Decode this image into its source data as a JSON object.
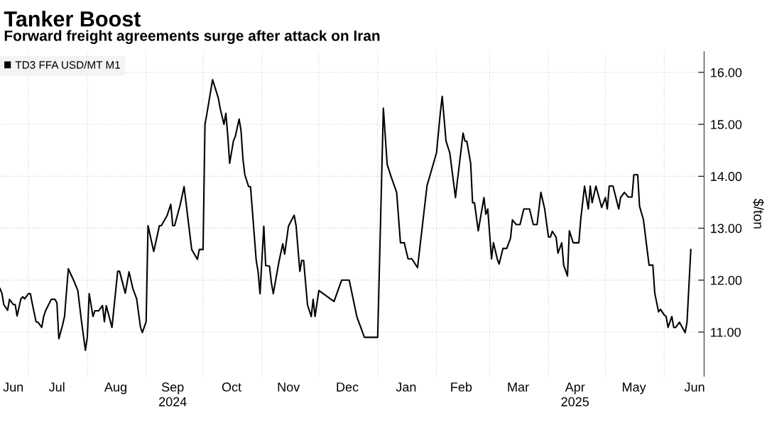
{
  "chart_data": {
    "type": "line",
    "title": "Tanker Boost",
    "subtitle": "Forward freight agreements surge after attack on Iran",
    "ylabel": "$/ton",
    "x": [
      "2024-06-16",
      "2024-06-17",
      "2024-06-18",
      "2024-06-20",
      "2024-06-21",
      "2024-06-23",
      "2024-06-24",
      "2024-06-25",
      "2024-06-27",
      "2024-06-28",
      "2024-06-29",
      "2024-07-01",
      "2024-07-02",
      "2024-07-03",
      "2024-07-05",
      "2024-07-06",
      "2024-07-08",
      "2024-07-09",
      "2024-07-10",
      "2024-07-13",
      "2024-07-15",
      "2024-07-16",
      "2024-07-17",
      "2024-07-19",
      "2024-07-20",
      "2024-07-22",
      "2024-07-25",
      "2024-07-27",
      "2024-07-29",
      "2024-07-31",
      "2024-08-01",
      "2024-08-02",
      "2024-08-04",
      "2024-08-05",
      "2024-08-07",
      "2024-08-09",
      "2024-08-10",
      "2024-08-11",
      "2024-08-14",
      "2024-08-17",
      "2024-08-18",
      "2024-08-21",
      "2024-08-23",
      "2024-08-25",
      "2024-08-27",
      "2024-08-29",
      "2024-08-30",
      "2024-09-01",
      "2024-09-02",
      "2024-09-05",
      "2024-09-08",
      "2024-09-09",
      "2024-09-12",
      "2024-09-14",
      "2024-09-15",
      "2024-09-16",
      "2024-09-19",
      "2024-09-21",
      "2024-09-25",
      "2024-09-28",
      "2024-09-29",
      "2024-10-01",
      "2024-10-02",
      "2024-10-03",
      "2024-10-06",
      "2024-10-09",
      "2024-10-10",
      "2024-10-12",
      "2024-10-13",
      "2024-10-14",
      "2024-10-15",
      "2024-10-17",
      "2024-10-18",
      "2024-10-20",
      "2024-10-21",
      "2024-10-22",
      "2024-10-23",
      "2024-10-25",
      "2024-10-26",
      "2024-10-29",
      "2024-10-30",
      "2024-10-31",
      "2024-11-02",
      "2024-11-03",
      "2024-11-05",
      "2024-11-06",
      "2024-11-07",
      "2024-11-10",
      "2024-11-12",
      "2024-11-13",
      "2024-11-15",
      "2024-11-18",
      "2024-11-19",
      "2024-11-21",
      "2024-11-22",
      "2024-11-23",
      "2024-11-25",
      "2024-11-27",
      "2024-11-28",
      "2024-11-29",
      "2024-12-01",
      "2024-12-09",
      "2024-12-13",
      "2024-12-17",
      "2024-12-21",
      "2024-12-25",
      "2025-01-01",
      "2025-01-04",
      "2025-01-06",
      "2025-01-08",
      "2025-01-11",
      "2025-01-13",
      "2025-01-15",
      "2025-01-17",
      "2025-01-19",
      "2025-01-22",
      "2025-01-27",
      "2025-02-01",
      "2025-02-03",
      "2025-02-04",
      "2025-02-06",
      "2025-02-08",
      "2025-02-11",
      "2025-02-12",
      "2025-02-15",
      "2025-02-16",
      "2025-02-17",
      "2025-02-19",
      "2025-02-20",
      "2025-02-21",
      "2025-02-23",
      "2025-02-26",
      "2025-02-27",
      "2025-02-28",
      "2025-03-02",
      "2025-03-03",
      "2025-03-05",
      "2025-03-06",
      "2025-03-08",
      "2025-03-10",
      "2025-03-12",
      "2025-03-13",
      "2025-03-15",
      "2025-03-17",
      "2025-03-19",
      "2025-03-22",
      "2025-03-24",
      "2025-03-26",
      "2025-03-28",
      "2025-03-30",
      "2025-04-01",
      "2025-04-02",
      "2025-04-03",
      "2025-04-05",
      "2025-04-06",
      "2025-04-08",
      "2025-04-09",
      "2025-04-11",
      "2025-04-12",
      "2025-04-14",
      "2025-04-17",
      "2025-04-18",
      "2025-04-20",
      "2025-04-22",
      "2025-04-23",
      "2025-04-24",
      "2025-04-26",
      "2025-04-29",
      "2025-05-01",
      "2025-05-02",
      "2025-05-03",
      "2025-05-05",
      "2025-05-08",
      "2025-05-09",
      "2025-05-11",
      "2025-05-13",
      "2025-05-15",
      "2025-05-16",
      "2025-05-18",
      "2025-05-19",
      "2025-05-21",
      "2025-05-24",
      "2025-05-26",
      "2025-05-27",
      "2025-05-29",
      "2025-05-30",
      "2025-06-01",
      "2025-06-02",
      "2025-06-03",
      "2025-06-05",
      "2025-06-06",
      "2025-06-07",
      "2025-06-09",
      "2025-06-12",
      "2025-06-13",
      "2025-06-15"
    ],
    "series": [
      {
        "name": "TD3 FFA USD/MT M1",
        "color": "#000000",
        "values": [
          11.84,
          11.75,
          11.53,
          11.42,
          11.63,
          11.53,
          11.53,
          11.31,
          11.64,
          11.68,
          11.64,
          11.74,
          11.74,
          11.55,
          11.2,
          11.19,
          11.09,
          11.3,
          11.41,
          11.63,
          11.63,
          11.56,
          10.87,
          11.14,
          11.3,
          12.22,
          11.98,
          11.8,
          11.19,
          10.65,
          10.9,
          11.74,
          11.3,
          11.41,
          11.41,
          11.51,
          11.2,
          11.51,
          11.09,
          12.17,
          12.17,
          11.75,
          12.16,
          11.84,
          11.64,
          11.1,
          10.99,
          11.2,
          13.05,
          12.55,
          13.05,
          13.05,
          13.24,
          13.46,
          13.05,
          13.05,
          13.46,
          13.8,
          12.59,
          12.4,
          12.59,
          12.59,
          15.0,
          15.2,
          15.86,
          15.51,
          15.31,
          15.0,
          15.21,
          14.79,
          14.25,
          14.68,
          14.77,
          15.1,
          14.88,
          14.34,
          14.03,
          13.8,
          13.8,
          12.38,
          12.16,
          11.74,
          13.04,
          12.28,
          12.27,
          11.95,
          11.74,
          12.36,
          12.7,
          12.5,
          13.04,
          13.25,
          13.05,
          12.17,
          12.38,
          12.38,
          11.53,
          11.3,
          11.63,
          11.3,
          11.8,
          11.59,
          12.0,
          12.0,
          11.3,
          10.9,
          10.9,
          15.31,
          14.23,
          14.0,
          13.69,
          12.72,
          12.72,
          12.41,
          12.41,
          12.24,
          13.82,
          14.45,
          15.22,
          15.54,
          14.68,
          14.45,
          13.59,
          13.91,
          14.83,
          14.68,
          14.67,
          14.25,
          13.49,
          13.49,
          12.95,
          13.59,
          13.27,
          13.37,
          12.41,
          12.72,
          12.41,
          12.31,
          12.61,
          12.61,
          12.81,
          13.16,
          13.07,
          13.07,
          13.37,
          13.37,
          13.07,
          13.07,
          13.69,
          13.37,
          12.83,
          12.83,
          12.94,
          12.83,
          12.52,
          12.72,
          12.29,
          12.08,
          12.95,
          12.72,
          12.72,
          13.17,
          13.81,
          13.37,
          13.81,
          13.49,
          13.81,
          13.4,
          13.59,
          13.37,
          13.81,
          13.81,
          13.37,
          13.59,
          13.69,
          13.6,
          13.6,
          14.03,
          14.03,
          13.42,
          13.17,
          12.29,
          12.29,
          11.75,
          11.39,
          11.44,
          11.33,
          11.3,
          11.09,
          11.3,
          11.09,
          11.09,
          11.19,
          10.99,
          11.19,
          12.59
        ]
      }
    ],
    "xlim": [
      "2024-06-16",
      "2025-06-22"
    ],
    "xticks": [
      {
        "value": "2024-07-01",
        "label": null
      },
      {
        "value": "2024-08-01",
        "label": null
      },
      {
        "value": "2024-09-01",
        "label": null
      },
      {
        "value": "2024-10-01",
        "label": null
      },
      {
        "value": "2024-11-01",
        "label": null
      },
      {
        "value": "2024-12-01",
        "label": null
      },
      {
        "value": "2025-01-01",
        "label": null
      },
      {
        "value": "2025-02-01",
        "label": null
      },
      {
        "value": "2025-03-01",
        "label": null
      },
      {
        "value": "2025-04-01",
        "label": null
      },
      {
        "value": "2025-05-01",
        "label": null
      },
      {
        "value": "2025-06-01",
        "label": null
      },
      {
        "value": "2024-06-23",
        "label": "Jun"
      },
      {
        "value": "2024-07-16",
        "label": "Jul"
      },
      {
        "value": "2024-08-16",
        "label": "Aug"
      },
      {
        "value": "2024-09-15",
        "label": "Sep\n2024"
      },
      {
        "value": "2024-10-16",
        "label": "Oct"
      },
      {
        "value": "2024-11-15",
        "label": "Nov"
      },
      {
        "value": "2024-12-16",
        "label": "Dec"
      },
      {
        "value": "2025-01-16",
        "label": "Jan"
      },
      {
        "value": "2025-02-14",
        "label": "Feb"
      },
      {
        "value": "2025-03-16",
        "label": "Mar"
      },
      {
        "value": "2025-04-15",
        "label": "Apr\n2025"
      },
      {
        "value": "2025-05-16",
        "label": "May"
      },
      {
        "value": "2025-06-17",
        "label": "Jun"
      }
    ],
    "ylim": [
      10.15,
      16.4
    ],
    "yticks": [
      {
        "value": 11,
        "label": "11.00"
      },
      {
        "value": 12,
        "label": "12.00"
      },
      {
        "value": 13,
        "label": "13.00"
      },
      {
        "value": 14,
        "label": "14.00"
      },
      {
        "value": 15,
        "label": "15.00"
      },
      {
        "value": 16,
        "label": "16.00"
      }
    ],
    "grid": true,
    "legend": "top left"
  }
}
